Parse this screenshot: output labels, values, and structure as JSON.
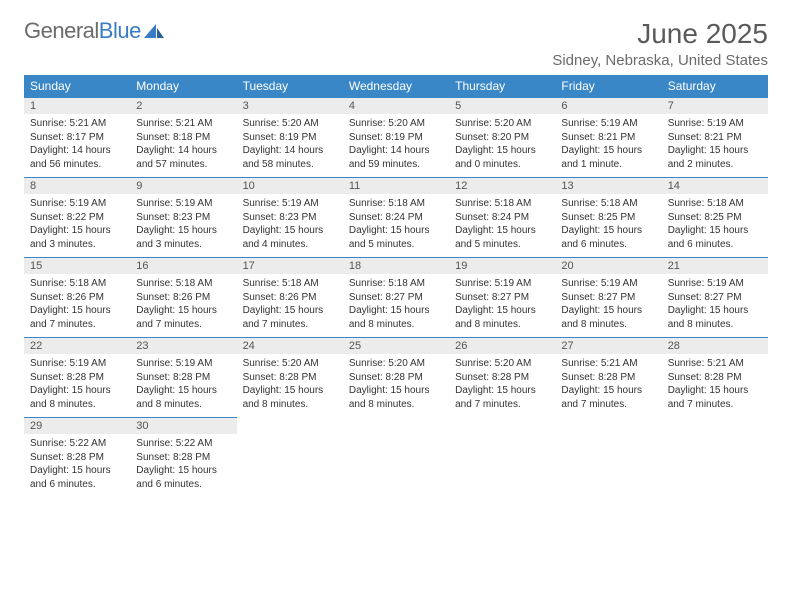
{
  "logo": {
    "text1": "General",
    "text2": "Blue"
  },
  "title": "June 2025",
  "location": "Sidney, Nebraska, United States",
  "colors": {
    "header_bg": "#3a87c7",
    "header_text": "#ffffff",
    "daynum_bg": "#ececec",
    "daynum_border": "#3a87c7",
    "body_text": "#333333",
    "title_text": "#5a5a5a",
    "logo_gray": "#6b6b6b",
    "logo_blue": "#3a7cc4"
  },
  "weekdays": [
    "Sunday",
    "Monday",
    "Tuesday",
    "Wednesday",
    "Thursday",
    "Friday",
    "Saturday"
  ],
  "days": [
    {
      "n": "1",
      "sr": "5:21 AM",
      "ss": "8:17 PM",
      "dl": "14 hours and 56 minutes."
    },
    {
      "n": "2",
      "sr": "5:21 AM",
      "ss": "8:18 PM",
      "dl": "14 hours and 57 minutes."
    },
    {
      "n": "3",
      "sr": "5:20 AM",
      "ss": "8:19 PM",
      "dl": "14 hours and 58 minutes."
    },
    {
      "n": "4",
      "sr": "5:20 AM",
      "ss": "8:19 PM",
      "dl": "14 hours and 59 minutes."
    },
    {
      "n": "5",
      "sr": "5:20 AM",
      "ss": "8:20 PM",
      "dl": "15 hours and 0 minutes."
    },
    {
      "n": "6",
      "sr": "5:19 AM",
      "ss": "8:21 PM",
      "dl": "15 hours and 1 minute."
    },
    {
      "n": "7",
      "sr": "5:19 AM",
      "ss": "8:21 PM",
      "dl": "15 hours and 2 minutes."
    },
    {
      "n": "8",
      "sr": "5:19 AM",
      "ss": "8:22 PM",
      "dl": "15 hours and 3 minutes."
    },
    {
      "n": "9",
      "sr": "5:19 AM",
      "ss": "8:23 PM",
      "dl": "15 hours and 3 minutes."
    },
    {
      "n": "10",
      "sr": "5:19 AM",
      "ss": "8:23 PM",
      "dl": "15 hours and 4 minutes."
    },
    {
      "n": "11",
      "sr": "5:18 AM",
      "ss": "8:24 PM",
      "dl": "15 hours and 5 minutes."
    },
    {
      "n": "12",
      "sr": "5:18 AM",
      "ss": "8:24 PM",
      "dl": "15 hours and 5 minutes."
    },
    {
      "n": "13",
      "sr": "5:18 AM",
      "ss": "8:25 PM",
      "dl": "15 hours and 6 minutes."
    },
    {
      "n": "14",
      "sr": "5:18 AM",
      "ss": "8:25 PM",
      "dl": "15 hours and 6 minutes."
    },
    {
      "n": "15",
      "sr": "5:18 AM",
      "ss": "8:26 PM",
      "dl": "15 hours and 7 minutes."
    },
    {
      "n": "16",
      "sr": "5:18 AM",
      "ss": "8:26 PM",
      "dl": "15 hours and 7 minutes."
    },
    {
      "n": "17",
      "sr": "5:18 AM",
      "ss": "8:26 PM",
      "dl": "15 hours and 7 minutes."
    },
    {
      "n": "18",
      "sr": "5:18 AM",
      "ss": "8:27 PM",
      "dl": "15 hours and 8 minutes."
    },
    {
      "n": "19",
      "sr": "5:19 AM",
      "ss": "8:27 PM",
      "dl": "15 hours and 8 minutes."
    },
    {
      "n": "20",
      "sr": "5:19 AM",
      "ss": "8:27 PM",
      "dl": "15 hours and 8 minutes."
    },
    {
      "n": "21",
      "sr": "5:19 AM",
      "ss": "8:27 PM",
      "dl": "15 hours and 8 minutes."
    },
    {
      "n": "22",
      "sr": "5:19 AM",
      "ss": "8:28 PM",
      "dl": "15 hours and 8 minutes."
    },
    {
      "n": "23",
      "sr": "5:19 AM",
      "ss": "8:28 PM",
      "dl": "15 hours and 8 minutes."
    },
    {
      "n": "24",
      "sr": "5:20 AM",
      "ss": "8:28 PM",
      "dl": "15 hours and 8 minutes."
    },
    {
      "n": "25",
      "sr": "5:20 AM",
      "ss": "8:28 PM",
      "dl": "15 hours and 8 minutes."
    },
    {
      "n": "26",
      "sr": "5:20 AM",
      "ss": "8:28 PM",
      "dl": "15 hours and 7 minutes."
    },
    {
      "n": "27",
      "sr": "5:21 AM",
      "ss": "8:28 PM",
      "dl": "15 hours and 7 minutes."
    },
    {
      "n": "28",
      "sr": "5:21 AM",
      "ss": "8:28 PM",
      "dl": "15 hours and 7 minutes."
    },
    {
      "n": "29",
      "sr": "5:22 AM",
      "ss": "8:28 PM",
      "dl": "15 hours and 6 minutes."
    },
    {
      "n": "30",
      "sr": "5:22 AM",
      "ss": "8:28 PM",
      "dl": "15 hours and 6 minutes."
    }
  ],
  "labels": {
    "sunrise": "Sunrise: ",
    "sunset": "Sunset: ",
    "daylight": "Daylight: "
  }
}
